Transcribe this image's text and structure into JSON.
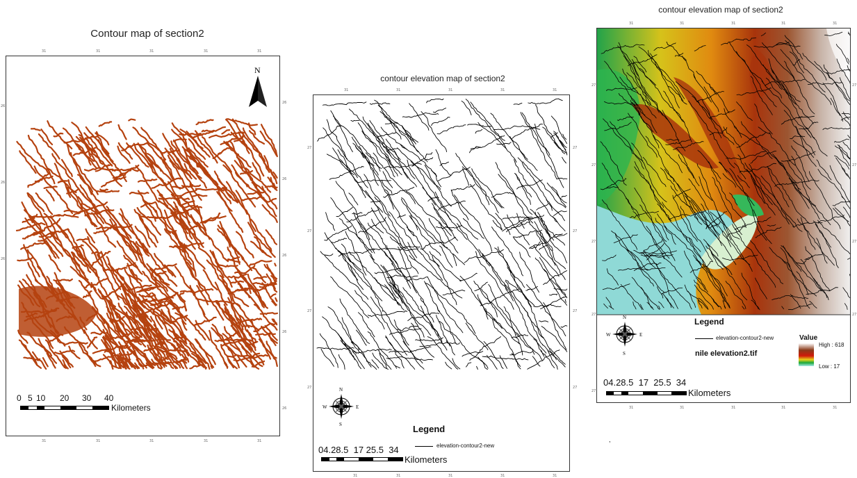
{
  "maps": [
    {
      "title": "Contour map of section2",
      "north_label": "N",
      "scale_labels": [
        "0",
        "5",
        "10",
        "20",
        "30",
        "40"
      ],
      "scale_unit": "Kilometers",
      "contour_color": "#b5420f",
      "lat_tick": "31",
      "lon_tick": "26"
    },
    {
      "title": "contour elevation map of section2",
      "legend_title": "Legend",
      "legend_item": "elevation-contour2-new",
      "scale_labels_text": "04.28.5  17 25.5  34",
      "scale_unit": "Kilometers",
      "compass": {
        "n": "N",
        "s": "S",
        "e": "E",
        "w": "W"
      },
      "contour_color": "#000000",
      "lat_tick": "31",
      "lon_tick": "27"
    },
    {
      "title": "contour elevation map of section2",
      "legend_title": "Legend",
      "legend_item": "elevation-contour2-new",
      "raster_name": "nile elevation2.tif",
      "value_label": "Value",
      "high_label": "High : 618",
      "low_label": "Low : 17",
      "scale_labels_text": "04.28.5  17  25.5  34",
      "scale_unit": "Kilometers",
      "compass": {
        "n": "N",
        "s": "S",
        "e": "E",
        "w": "W"
      },
      "lat_tick": "31",
      "lon_tick": "27"
    }
  ],
  "footnote": ","
}
